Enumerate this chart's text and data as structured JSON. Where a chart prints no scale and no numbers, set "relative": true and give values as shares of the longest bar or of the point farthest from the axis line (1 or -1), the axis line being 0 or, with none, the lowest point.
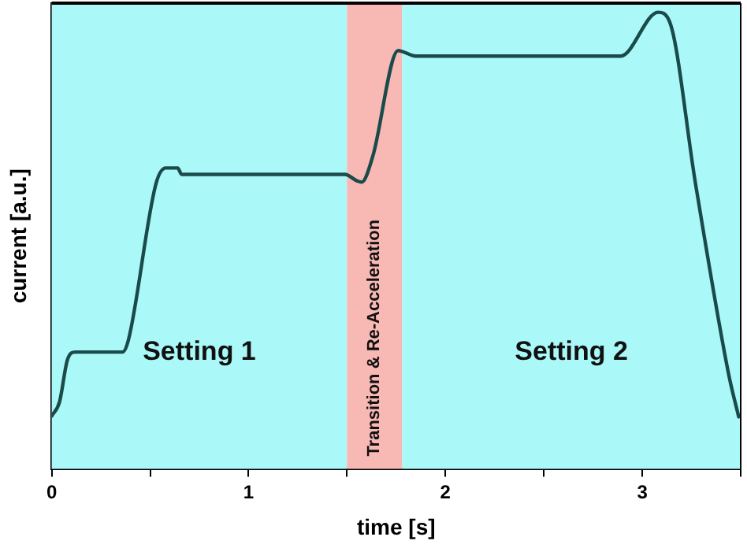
{
  "chart_data": {
    "type": "line",
    "xlabel": "time [s]",
    "ylabel": "current [a.u.]",
    "relative": true,
    "grid": false,
    "marker": "none",
    "line_style": "solid",
    "xlim": [
      0,
      3.5
    ],
    "xticks": [
      0,
      {
        "value": 0.5,
        "label": null
      },
      1,
      {
        "value": 1.5,
        "label": null
      },
      2,
      {
        "value": 2.5,
        "label": null
      },
      3,
      {
        "value": 3.5,
        "label": null
      }
    ],
    "bands": [
      {
        "axis": "x",
        "from": 0,
        "to": 1.5,
        "label": "Setting 1",
        "color": "#aaf8f8"
      },
      {
        "axis": "x",
        "from": 1.5,
        "to": 1.78,
        "label": "Transition & Re-Acceleration",
        "color": "#f8b8b4"
      },
      {
        "axis": "x",
        "from": 1.78,
        "to": 3.5,
        "label": "Setting 2",
        "color": "#aaf8f8"
      }
    ],
    "series": [
      {
        "color": "#1a4a4a",
        "x": [
          0,
          0.04,
          0.08,
          0.12,
          0.36,
          0.39,
          0.53,
          0.58,
          0.64,
          0.66,
          1.49,
          1.55,
          1.575,
          1.63,
          1.76,
          1.85,
          2.89,
          3.08,
          3.14,
          3.27,
          3.44,
          3.49
        ],
        "values": [
          0.116,
          0.147,
          0.239,
          0.256,
          0.256,
          0.283,
          0.625,
          0.659,
          0.659,
          0.645,
          0.645,
          0.631,
          0.628,
          0.683,
          0.916,
          0.904,
          0.904,
          1.0,
          0.978,
          0.626,
          0.205,
          0.114
        ]
      }
    ]
  }
}
